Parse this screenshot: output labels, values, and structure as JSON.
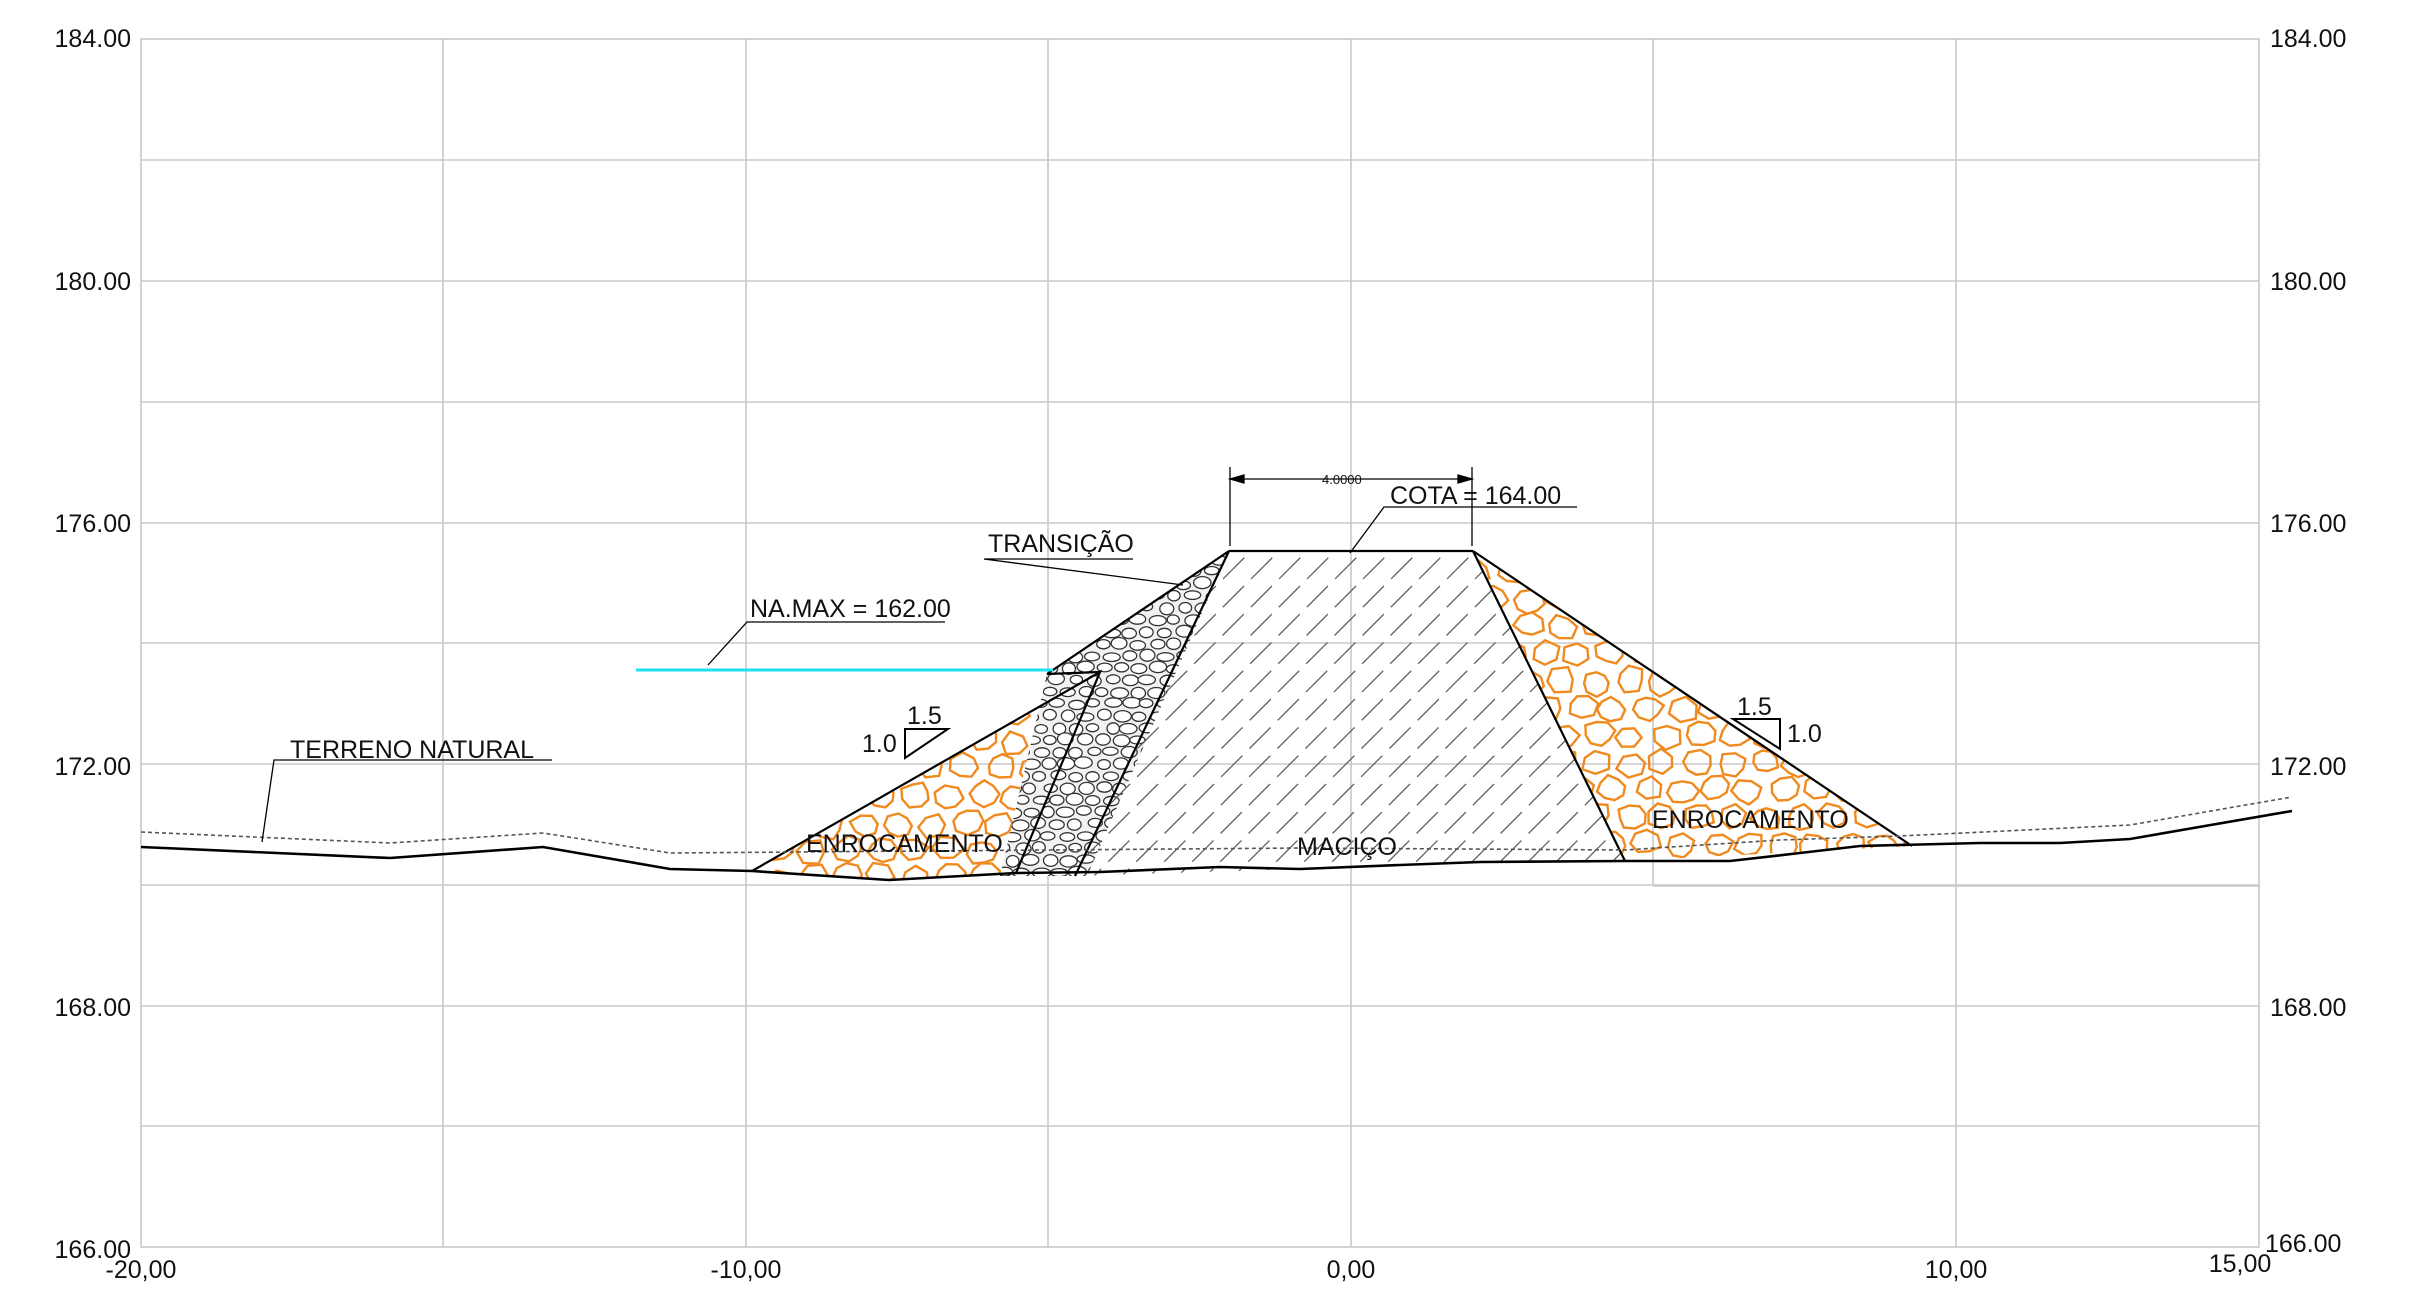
{
  "axes": {
    "y_ticks": [
      "184.00",
      "180.00",
      "176.00",
      "172.00",
      "168.00",
      "166.00"
    ],
    "x_ticks": [
      "-20,00",
      "-10,00",
      "0,00",
      "10,00",
      "15,00"
    ]
  },
  "labels": {
    "terreno_natural": "TERRENO NATURAL",
    "na_max": "NA.MAX = 162.00",
    "transicao": "TRANSIÇÃO",
    "cota": "COTA = 164.00",
    "crest_width": "4.0000",
    "enrocamento_left": "ENROCAMENTO",
    "enrocamento_right": "ENROCAMENTO",
    "macico": "MACIÇO",
    "slope_left_h": "1.5",
    "slope_left_v": "1.0",
    "slope_right_h": "1.5",
    "slope_right_v": "1.0"
  },
  "colors": {
    "water_line": "#1ee0f0",
    "rockfill": "#f08a1e",
    "grid": "#c8c8c8",
    "outline": "#000000"
  }
}
